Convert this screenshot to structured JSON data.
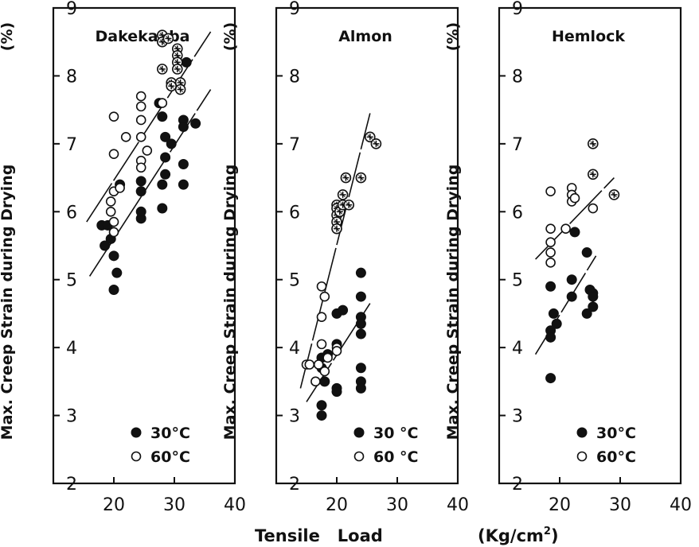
{
  "chart_data": [
    {
      "type": "scatter",
      "title": "Dakekanba",
      "ylabel": "Max. Creep Strain during Drying",
      "yunit": "(%)",
      "xlim": [
        10,
        40
      ],
      "ylim": [
        2,
        9
      ],
      "xticks": [
        "20",
        "30",
        "40"
      ],
      "yticks": [
        "2",
        "3",
        "4",
        "5",
        "6",
        "7",
        "8",
        "9"
      ],
      "series": [
        {
          "name": "30°C",
          "marker": "filled",
          "points": [
            [
              18,
              5.8
            ],
            [
              18.5,
              5.5
            ],
            [
              19,
              5.8
            ],
            [
              19.5,
              5.6
            ],
            [
              20,
              5.35
            ],
            [
              20,
              4.85
            ],
            [
              20.5,
              5.1
            ],
            [
              21,
              6.4
            ],
            [
              24.5,
              5.9
            ],
            [
              24.5,
              6.0
            ],
            [
              24.5,
              6.3
            ],
            [
              24.5,
              6.45
            ],
            [
              27.5,
              7.6
            ],
            [
              28,
              7.4
            ],
            [
              28,
              6.4
            ],
            [
              28,
              6.05
            ],
            [
              28.5,
              7.1
            ],
            [
              28.5,
              6.55
            ],
            [
              28.5,
              6.8
            ],
            [
              29.5,
              7.0
            ],
            [
              31.5,
              7.35
            ],
            [
              31.5,
              7.25
            ],
            [
              31.5,
              6.7
            ],
            [
              31.5,
              6.4
            ],
            [
              32,
              8.2
            ],
            [
              33.5,
              7.3
            ]
          ]
        },
        {
          "name": "60°C",
          "marker": "open",
          "points": [
            [
              19.5,
              6.15
            ],
            [
              19.5,
              6.0
            ],
            [
              20,
              7.4
            ],
            [
              20,
              6.85
            ],
            [
              20,
              6.3
            ],
            [
              20,
              5.85
            ],
            [
              20,
              5.7
            ],
            [
              21,
              6.35
            ],
            [
              22,
              7.1
            ],
            [
              24.5,
              7.7
            ],
            [
              24.5,
              7.55
            ],
            [
              24.5,
              7.35
            ],
            [
              24.5,
              7.1
            ],
            [
              24.5,
              6.75
            ],
            [
              24.5,
              6.65
            ],
            [
              25.5,
              6.9
            ],
            [
              28,
              7.6
            ]
          ]
        },
        {
          "name": "60°C",
          "marker": "hatched",
          "points": [
            [
              28,
              8.6
            ],
            [
              28,
              8.5
            ],
            [
              28,
              8.1
            ],
            [
              29,
              8.55
            ],
            [
              29.5,
              7.9
            ],
            [
              29.5,
              7.85
            ],
            [
              30.5,
              8.4
            ],
            [
              30.5,
              8.3
            ],
            [
              30.5,
              8.2
            ],
            [
              30.5,
              8.1
            ],
            [
              31,
              7.9
            ],
            [
              31,
              7.8
            ]
          ]
        }
      ],
      "fit_lines": [
        {
          "from": [
            15.5,
            5.85
          ],
          "to": [
            36,
            8.65
          ]
        },
        {
          "from": [
            16,
            5.05
          ],
          "to": [
            36,
            7.8
          ]
        }
      ],
      "legend": [
        "30°C",
        "60°C"
      ],
      "legend_position": "bottom-right"
    },
    {
      "type": "scatter",
      "title": "Almon",
      "ylabel": "Max. Creep Strain during Drying",
      "yunit": "(%)",
      "xlim": [
        10,
        40
      ],
      "ylim": [
        2,
        9
      ],
      "xticks": [
        "20",
        "30",
        "40"
      ],
      "yticks": [
        "2",
        "3",
        "4",
        "5",
        "6",
        "7",
        "8",
        "9"
      ],
      "series": [
        {
          "name": "30 °C",
          "marker": "filled",
          "points": [
            [
              17.5,
              3.85
            ],
            [
              17.5,
              3.7
            ],
            [
              17.5,
              3.15
            ],
            [
              17.5,
              3.0
            ],
            [
              18,
              3.5
            ],
            [
              18.5,
              3.9
            ],
            [
              20,
              4.5
            ],
            [
              20,
              4.05
            ],
            [
              20,
              3.4
            ],
            [
              20,
              3.35
            ],
            [
              21,
              4.55
            ],
            [
              24,
              5.1
            ],
            [
              24,
              4.75
            ],
            [
              24,
              4.45
            ],
            [
              24,
              4.35
            ],
            [
              24,
              4.2
            ],
            [
              24,
              3.7
            ],
            [
              24,
              3.5
            ],
            [
              24,
              3.4
            ]
          ]
        },
        {
          "name": "60 °C",
          "marker": "open",
          "points": [
            [
              15,
              3.75
            ],
            [
              15.5,
              3.75
            ],
            [
              16.5,
              3.5
            ],
            [
              17,
              3.75
            ],
            [
              17.5,
              4.9
            ],
            [
              17.5,
              4.45
            ],
            [
              17.5,
              4.05
            ],
            [
              18,
              4.75
            ],
            [
              18,
              3.65
            ],
            [
              18.5,
              3.85
            ],
            [
              20,
              4.0
            ],
            [
              20,
              3.95
            ]
          ]
        },
        {
          "name": "60 °C",
          "marker": "hatched",
          "points": [
            [
              20,
              6.1
            ],
            [
              20,
              6.05
            ],
            [
              20,
              5.95
            ],
            [
              20,
              5.85
            ],
            [
              20,
              5.75
            ],
            [
              20.5,
              6.0
            ],
            [
              21,
              6.25
            ],
            [
              21,
              6.1
            ],
            [
              21.5,
              6.5
            ],
            [
              22,
              6.1
            ],
            [
              24,
              6.5
            ],
            [
              25.5,
              7.1
            ],
            [
              26.5,
              7.0
            ]
          ]
        }
      ],
      "fit_lines": [
        {
          "from": [
            14,
            3.4
          ],
          "to": [
            25.5,
            7.45
          ]
        },
        {
          "from": [
            15,
            3.2
          ],
          "to": [
            25.5,
            4.65
          ]
        }
      ],
      "legend": [
        "30 °C",
        "60 °C"
      ],
      "legend_position": "bottom-right"
    },
    {
      "type": "scatter",
      "title": "Hemlock",
      "ylabel": "Max. Creep Strain during Drying",
      "yunit": "(%)",
      "xlim": [
        10,
        40
      ],
      "ylim": [
        2,
        9
      ],
      "xticks": [
        "20",
        "30",
        "40"
      ],
      "yticks": [
        "2",
        "3",
        "4",
        "5",
        "6",
        "7",
        "8",
        "9"
      ],
      "series": [
        {
          "name": "30°C",
          "marker": "filled",
          "points": [
            [
              18.5,
              3.55
            ],
            [
              18.5,
              4.9
            ],
            [
              18.5,
              4.25
            ],
            [
              18.5,
              4.15
            ],
            [
              19,
              4.5
            ],
            [
              19.5,
              4.35
            ],
            [
              22,
              4.75
            ],
            [
              22,
              5.0
            ],
            [
              22.5,
              5.7
            ],
            [
              24.5,
              5.4
            ],
            [
              24.5,
              4.5
            ],
            [
              25,
              4.85
            ],
            [
              25.5,
              4.8
            ],
            [
              25.5,
              4.75
            ],
            [
              25.5,
              4.6
            ]
          ]
        },
        {
          "name": "60°C",
          "marker": "open",
          "points": [
            [
              18.5,
              6.3
            ],
            [
              18.5,
              5.75
            ],
            [
              18.5,
              5.55
            ],
            [
              18.5,
              5.4
            ],
            [
              18.5,
              5.25
            ],
            [
              21,
              5.75
            ],
            [
              22,
              6.35
            ],
            [
              22,
              6.25
            ],
            [
              22,
              6.15
            ],
            [
              22.5,
              6.2
            ],
            [
              25.5,
              6.05
            ]
          ]
        },
        {
          "name": "60°C",
          "marker": "hatched",
          "points": [
            [
              25.5,
              7.0
            ],
            [
              25.5,
              6.55
            ],
            [
              29,
              6.25
            ]
          ]
        }
      ],
      "fit_lines": [
        {
          "from": [
            16,
            5.3
          ],
          "to": [
            29,
            6.5
          ]
        },
        {
          "from": [
            16,
            3.9
          ],
          "to": [
            26,
            5.35
          ]
        }
      ],
      "legend": [
        "30°C",
        "60°C"
      ],
      "legend_position": "bottom-right"
    }
  ],
  "x_axis_label": {
    "title": "Tensile   Load",
    "unit_base": "(Kg/cm",
    "unit_sup": "2",
    "unit_close": ")"
  }
}
